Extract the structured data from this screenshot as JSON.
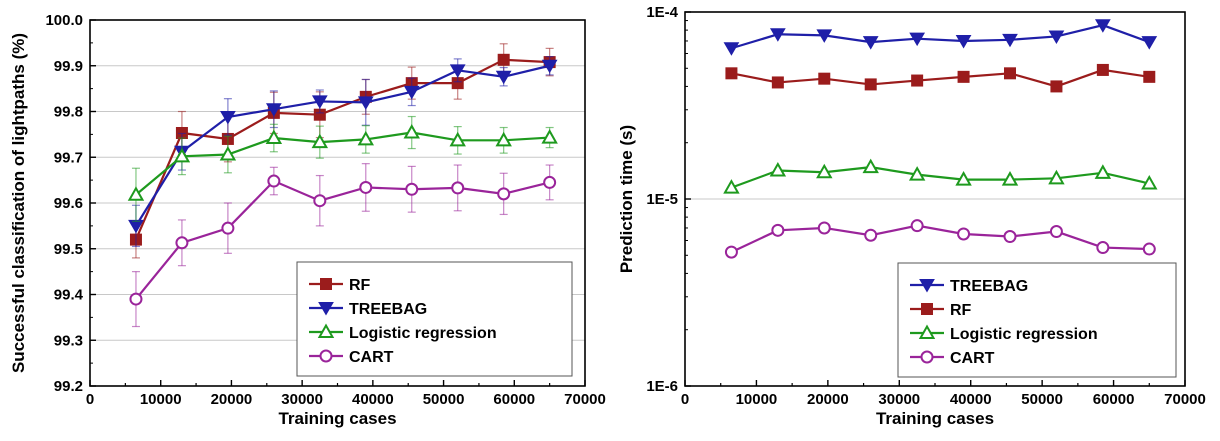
{
  "chart_data": [
    {
      "type": "line",
      "xlabel": "Training cases",
      "ylabel": "Successful classification of lightpaths (%)",
      "xlim": [
        0,
        70000
      ],
      "ylim": [
        99.2,
        100.0
      ],
      "x_ticks": [
        "0",
        "10000",
        "20000",
        "30000",
        "40000",
        "50000",
        "60000",
        "70000"
      ],
      "y_ticks": [
        "99.2",
        "99.3",
        "99.4",
        "99.5",
        "99.6",
        "99.7",
        "99.8",
        "99.9",
        "100.0"
      ],
      "y_scale": "linear",
      "grid": "horizontal",
      "legend_position": "bottom-right",
      "x": [
        6500,
        13000,
        19500,
        26000,
        32500,
        39000,
        45500,
        52000,
        58500,
        65000
      ],
      "series": [
        {
          "name": "RF",
          "color": "#9b1c1c",
          "marker": "square-filled",
          "values": [
            99.52,
            99.753,
            99.74,
            99.797,
            99.793,
            99.832,
            99.862,
            99.862,
            99.913,
            99.908
          ],
          "errors": [
            0.04,
            0.047,
            0.05,
            0.045,
            0.05,
            0.038,
            0.035,
            0.035,
            0.035,
            0.03
          ]
        },
        {
          "name": "TREEBAG",
          "color": "#1f1fa8",
          "marker": "triangle-down-filled",
          "values": [
            99.55,
            99.712,
            99.788,
            99.805,
            99.822,
            99.82,
            99.843,
            99.89,
            99.876,
            99.9
          ],
          "errors": [
            0.045,
            0.04,
            0.04,
            0.04,
            0.025,
            0.05,
            0.03,
            0.025,
            0.02,
            0.02
          ]
        },
        {
          "name": "Logistic regression",
          "color": "#1e9a1e",
          "marker": "triangle-up-open",
          "values": [
            99.618,
            99.702,
            99.706,
            99.742,
            99.733,
            99.739,
            99.754,
            99.737,
            99.737,
            99.743
          ],
          "errors": [
            0.058,
            0.04,
            0.04,
            0.03,
            0.035,
            0.03,
            0.035,
            0.03,
            0.028,
            0.022
          ]
        },
        {
          "name": "CART",
          "color": "#9a249a",
          "marker": "circle-open",
          "values": [
            99.39,
            99.513,
            99.545,
            99.648,
            99.605,
            99.634,
            99.63,
            99.633,
            99.62,
            99.645
          ],
          "errors": [
            0.06,
            0.05,
            0.055,
            0.03,
            0.055,
            0.052,
            0.05,
            0.05,
            0.045,
            0.038
          ]
        }
      ]
    },
    {
      "type": "line",
      "xlabel": "Training cases",
      "ylabel": "Prediction time (s)",
      "xlim": [
        0,
        70000
      ],
      "ylim": [
        1e-06,
        0.0001
      ],
      "x_ticks": [
        "0",
        "10000",
        "20000",
        "30000",
        "40000",
        "50000",
        "60000",
        "70000"
      ],
      "y_ticks": [
        "1E-6",
        "1E-5",
        "1E-4"
      ],
      "y_scale": "log",
      "grid": "horizontal",
      "legend_position": "bottom-right",
      "x": [
        6500,
        13000,
        19500,
        26000,
        32500,
        39000,
        45500,
        52000,
        58500,
        65000
      ],
      "series": [
        {
          "name": "TREEBAG",
          "color": "#1f1fa8",
          "marker": "triangle-down-filled",
          "values": [
            6.4e-05,
            7.6e-05,
            7.5e-05,
            6.9e-05,
            7.2e-05,
            7e-05,
            7.1e-05,
            7.4e-05,
            8.5e-05,
            6.9e-05
          ]
        },
        {
          "name": "RF",
          "color": "#9b1c1c",
          "marker": "square-filled",
          "values": [
            4.7e-05,
            4.2e-05,
            4.4e-05,
            4.1e-05,
            4.3e-05,
            4.5e-05,
            4.7e-05,
            4e-05,
            4.9e-05,
            4.5e-05
          ]
        },
        {
          "name": "Logistic regression",
          "color": "#1e9a1e",
          "marker": "triangle-up-open",
          "values": [
            1.15e-05,
            1.42e-05,
            1.39e-05,
            1.48e-05,
            1.35e-05,
            1.27e-05,
            1.27e-05,
            1.29e-05,
            1.38e-05,
            1.21e-05
          ]
        },
        {
          "name": "CART",
          "color": "#9a249a",
          "marker": "circle-open",
          "values": [
            5.2e-06,
            6.8e-06,
            7e-06,
            6.4e-06,
            7.2e-06,
            6.5e-06,
            6.3e-06,
            6.7e-06,
            5.5e-06,
            5.4e-06
          ]
        }
      ]
    }
  ]
}
